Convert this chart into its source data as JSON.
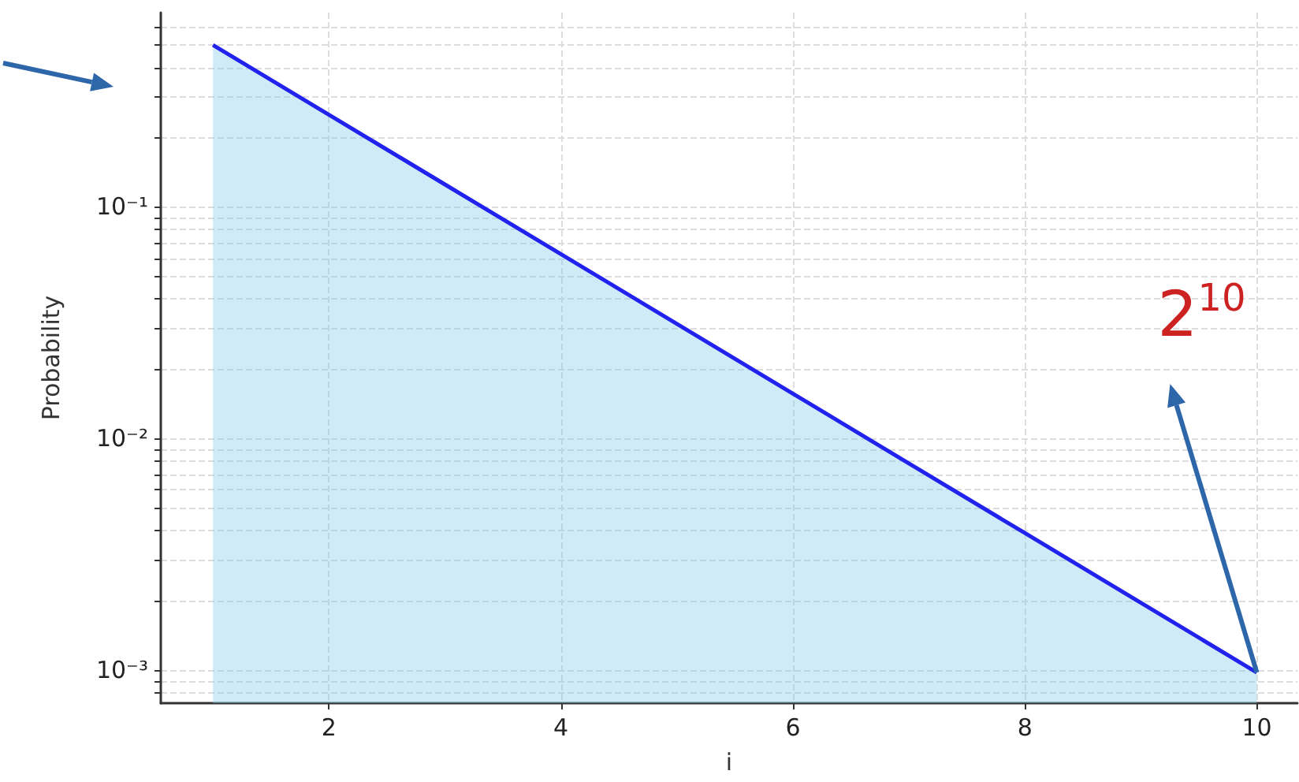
{
  "chart_data": {
    "type": "area",
    "xlabel": "i",
    "ylabel": "Probability",
    "x": [
      1,
      2,
      3,
      4,
      5,
      6,
      7,
      8,
      9,
      10
    ],
    "series": [
      {
        "color": "#2222ee",
        "values": [
          0.5,
          0.25,
          0.125,
          0.0625,
          0.03125,
          0.015625,
          0.0078125,
          0.00390625,
          0.001953125,
          0.0009765625
        ]
      }
    ],
    "log": "y",
    "xlim": [
      0.55,
      10.35
    ],
    "ylim": [
      0.00072,
      0.69
    ],
    "xticks": [
      2,
      4,
      6,
      8,
      10
    ],
    "yticks": [
      {
        "value": 0.0008,
        "label": null
      },
      {
        "value": 0.0009,
        "label": null
      },
      {
        "value": 0.001,
        "label": "10⁻³"
      },
      {
        "value": 0.002,
        "label": null
      },
      {
        "value": 0.003,
        "label": null
      },
      {
        "value": 0.004,
        "label": null
      },
      {
        "value": 0.005,
        "label": null
      },
      {
        "value": 0.006,
        "label": null
      },
      {
        "value": 0.007,
        "label": null
      },
      {
        "value": 0.008,
        "label": null
      },
      {
        "value": 0.009,
        "label": null
      },
      {
        "value": 0.01,
        "label": "10⁻²"
      },
      {
        "value": 0.02,
        "label": null
      },
      {
        "value": 0.03,
        "label": null
      },
      {
        "value": 0.04,
        "label": null
      },
      {
        "value": 0.05,
        "label": null
      },
      {
        "value": 0.06,
        "label": null
      },
      {
        "value": 0.07,
        "label": null
      },
      {
        "value": 0.08,
        "label": null
      },
      {
        "value": 0.09,
        "label": null
      },
      {
        "value": 0.1,
        "label": "10⁻¹"
      },
      {
        "value": 0.2,
        "label": null
      },
      {
        "value": 0.3,
        "label": null
      },
      {
        "value": 0.4,
        "label": null
      },
      {
        "value": 0.5,
        "label": null
      },
      {
        "value": 0.6,
        "label": null
      }
    ],
    "grid": true,
    "line_style": "solid",
    "marker": "none",
    "annotations": [
      {
        "text": "2$^{10}$",
        "x": 10,
        "y": 0.0009765625
      }
    ]
  }
}
